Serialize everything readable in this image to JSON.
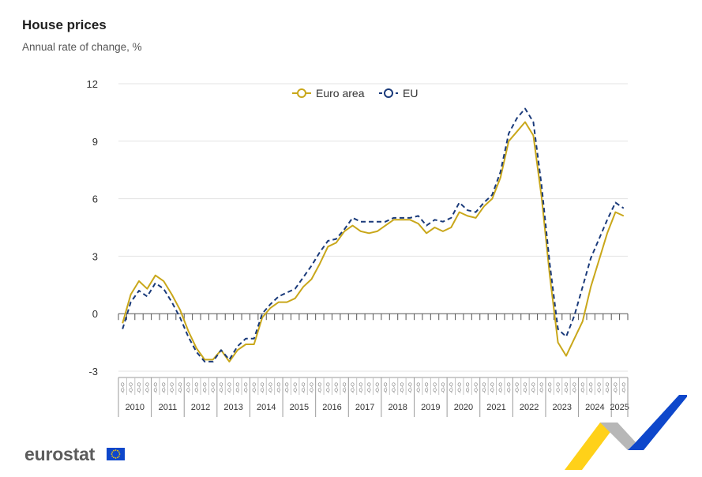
{
  "header": {
    "title": "House prices",
    "subtitle": "Annual rate of change, %"
  },
  "logo": {
    "text": "eurostat"
  },
  "colors": {
    "euro_area": "#c9a71a",
    "eu": "#1a3a7a",
    "grid": "#e3e3e3",
    "axis": "#9a9a9a",
    "brand_blue": "#0e47cb",
    "brand_yellow": "#ffcc00"
  },
  "chart_data": {
    "type": "line",
    "title": "House prices",
    "subtitle": "Annual rate of change, %",
    "ylim": [
      -3,
      12
    ],
    "yticks": [
      12,
      9,
      6,
      3,
      0,
      -3
    ],
    "grid": true,
    "legend_position": "top-center",
    "legend": [
      {
        "name": "Euro area",
        "style": "solid"
      },
      {
        "name": "EU",
        "style": "dashed"
      }
    ],
    "quarter_label": "Q",
    "years": [
      "2010",
      "2011",
      "2012",
      "2013",
      "2014",
      "2015",
      "2016",
      "2017",
      "2018",
      "2019",
      "2020",
      "2021",
      "2022",
      "2023",
      "2024",
      "2025"
    ],
    "years_quarters": [
      4,
      4,
      4,
      4,
      4,
      4,
      4,
      4,
      4,
      4,
      4,
      4,
      4,
      4,
      4,
      2
    ],
    "series": [
      {
        "name": "Euro area",
        "values": [
          -0.5,
          1.0,
          1.7,
          1.3,
          2.0,
          1.7,
          1.0,
          0.2,
          -0.9,
          -1.8,
          -2.4,
          -2.4,
          -1.9,
          -2.5,
          -1.9,
          -1.6,
          -1.6,
          -0.2,
          0.3,
          0.6,
          0.6,
          0.8,
          1.4,
          1.8,
          2.6,
          3.5,
          3.7,
          4.3,
          4.6,
          4.3,
          4.2,
          4.3,
          4.6,
          4.9,
          4.9,
          4.9,
          4.7,
          4.2,
          4.5,
          4.3,
          4.5,
          5.3,
          5.1,
          5.0,
          5.6,
          6.0,
          7.1,
          9.0,
          9.5,
          10.0,
          9.3,
          6.1,
          2.0,
          -1.5,
          -2.2,
          -1.3,
          -0.4,
          1.4,
          2.8,
          4.2,
          5.3,
          5.1
        ]
      },
      {
        "name": "EU",
        "values": [
          -0.8,
          0.6,
          1.2,
          0.9,
          1.6,
          1.3,
          0.6,
          -0.2,
          -1.2,
          -2.0,
          -2.5,
          -2.5,
          -1.9,
          -2.4,
          -1.7,
          -1.3,
          -1.3,
          0.0,
          0.5,
          0.9,
          1.1,
          1.3,
          1.9,
          2.5,
          3.2,
          3.8,
          3.9,
          4.4,
          5.0,
          4.8,
          4.8,
          4.8,
          4.8,
          5.0,
          5.0,
          5.0,
          5.1,
          4.6,
          4.9,
          4.8,
          5.0,
          5.8,
          5.4,
          5.3,
          5.8,
          6.2,
          7.4,
          9.4,
          10.2,
          10.7,
          10.0,
          6.7,
          2.6,
          -0.8,
          -1.2,
          -0.1,
          1.4,
          2.9,
          3.9,
          4.9,
          5.8,
          5.5
        ]
      }
    ]
  }
}
